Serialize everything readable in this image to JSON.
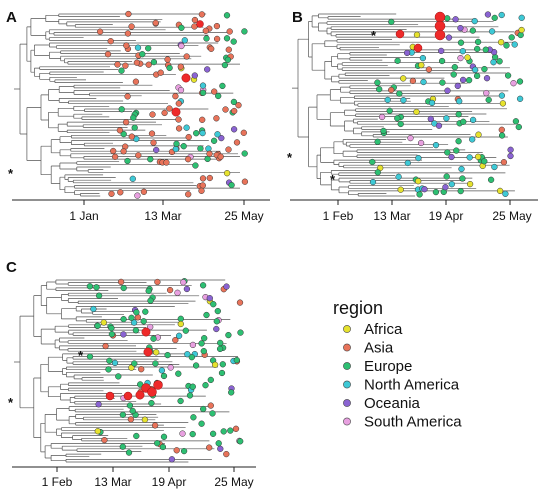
{
  "legend": {
    "title": "region",
    "items": [
      {
        "label": "Africa",
        "color": "#e6e22e"
      },
      {
        "label": "Asia",
        "color": "#e8735a"
      },
      {
        "label": "Europe",
        "color": "#2dbf72"
      },
      {
        "label": "North America",
        "color": "#3ec9d6"
      },
      {
        "label": "Oceania",
        "color": "#8a63d2"
      },
      {
        "label": "South America",
        "color": "#e8a0e0"
      }
    ]
  },
  "highlight_color": "#ee2a2a",
  "chart_data": [
    {
      "type": "phylogenetic-tree",
      "panel": "A",
      "ticks": [
        "1 Jan",
        "13 Mar",
        "25 May"
      ],
      "annotations": [
        "*"
      ]
    },
    {
      "type": "phylogenetic-tree",
      "panel": "B",
      "ticks": [
        "1 Feb",
        "13 Mar",
        "19 Apr",
        "25 May"
      ],
      "annotations": [
        "*",
        "*",
        "*"
      ]
    },
    {
      "type": "phylogenetic-tree",
      "panel": "C",
      "ticks": [
        "1 Feb",
        "13 Mar",
        "19 Apr",
        "25 May"
      ],
      "annotations": [
        "*",
        "*"
      ]
    }
  ]
}
